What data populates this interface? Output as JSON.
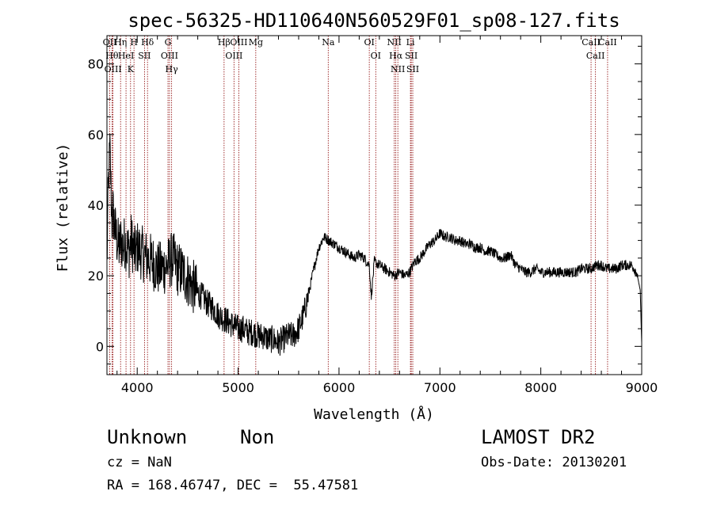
{
  "chart_data": {
    "type": "line",
    "title": "spec-56325-HD110640N560529F01_sp08-127.fits",
    "xlabel": "Wavelength (Å)",
    "ylabel": "Flux (relative)",
    "xlim": [
      3700,
      9000
    ],
    "ylim": [
      -8,
      88
    ],
    "xticks": [
      "4000",
      "5000",
      "6000",
      "7000",
      "8000",
      "9000"
    ],
    "yticks": [
      "0",
      "20",
      "40",
      "60",
      "80"
    ],
    "xtick_values": [
      4000,
      5000,
      6000,
      7000,
      8000,
      9000
    ],
    "ytick_values": [
      0,
      20,
      40,
      60,
      80
    ],
    "grid": false,
    "series": [
      {
        "color": "#000000",
        "x": [
          3700,
          3710,
          3720,
          3730,
          3740,
          3750,
          3760,
          3780,
          3800,
          3820,
          3840,
          3860,
          3880,
          3900,
          3920,
          3940,
          3960,
          3980,
          4000,
          4030,
          4060,
          4100,
          4150,
          4200,
          4250,
          4300,
          4350,
          4400,
          4450,
          4500,
          4550,
          4600,
          4650,
          4700,
          4750,
          4800,
          4850,
          4900,
          4950,
          5000,
          5050,
          5100,
          5150,
          5200,
          5250,
          5300,
          5350,
          5400,
          5450,
          5500,
          5550,
          5600,
          5650,
          5700,
          5750,
          5800,
          5850,
          5900,
          5950,
          6000,
          6050,
          6100,
          6150,
          6200,
          6250,
          6300,
          6320,
          6350,
          6400,
          6450,
          6500,
          6550,
          6600,
          6650,
          6700,
          6750,
          6800,
          6850,
          6900,
          6950,
          7000,
          7050,
          7100,
          7150,
          7200,
          7250,
          7300,
          7350,
          7400,
          7450,
          7500,
          7550,
          7600,
          7650,
          7700,
          7750,
          7800,
          7850,
          7900,
          7950,
          8000,
          8050,
          8100,
          8150,
          8200,
          8250,
          8300,
          8350,
          8400,
          8450,
          8500,
          8550,
          8600,
          8650,
          8700,
          8750,
          8800,
          8850,
          8900,
          8950,
          8985,
          9000
        ],
        "y": [
          22,
          40,
          50,
          55,
          45,
          35,
          38,
          33,
          30,
          28,
          30,
          28,
          30,
          28,
          27,
          30,
          28,
          26,
          28,
          27,
          26,
          25,
          24,
          22,
          22,
          23,
          25,
          22,
          21,
          19,
          17,
          15,
          14,
          12,
          11,
          9,
          8,
          7,
          6,
          5,
          5,
          4,
          4,
          3,
          3,
          2,
          2,
          1,
          2,
          3,
          3,
          5,
          9,
          15,
          22,
          28,
          31,
          30,
          29,
          28,
          27,
          26,
          25,
          26,
          25,
          23,
          14,
          24,
          23,
          22,
          21,
          20,
          21,
          20,
          21,
          24,
          25,
          27,
          29,
          30,
          32,
          31,
          31,
          30,
          30,
          29,
          29,
          28,
          28,
          27,
          27,
          26,
          25,
          25,
          26,
          23,
          22,
          21,
          21,
          22,
          21,
          21,
          21,
          21,
          21,
          21,
          21,
          21,
          22,
          22,
          22,
          23,
          23,
          22,
          22,
          22,
          23,
          23,
          23,
          21,
          16,
          1
        ]
      }
    ],
    "lines": [
      {
        "name": "OII",
        "x": 3727
      },
      {
        "name": "Hθ",
        "x": 3750
      },
      {
        "name": "OIII",
        "x": 3760
      },
      {
        "name": "Hη",
        "x": 3835
      },
      {
        "name": "HeI",
        "x": 3889
      },
      {
        "name": "K",
        "x": 3934
      },
      {
        "name": "H",
        "x": 3968
      },
      {
        "name": "SII",
        "x": 4072
      },
      {
        "name": "Hδ",
        "x": 4102
      },
      {
        "name": "G",
        "x": 4305
      },
      {
        "name": "OIII",
        "x": 4320
      },
      {
        "name": "Hγ",
        "x": 4341
      },
      {
        "name": "Hβ",
        "x": 4861
      },
      {
        "name": "OIII",
        "x": 4959
      },
      {
        "name": "OIII",
        "x": 5007
      },
      {
        "name": "Mg",
        "x": 5175
      },
      {
        "name": "Na",
        "x": 5893
      },
      {
        "name": "OI",
        "x": 6300
      },
      {
        "name": "OI",
        "x": 6364
      },
      {
        "name": "NII",
        "x": 6548
      },
      {
        "name": "Hα",
        "x": 6563
      },
      {
        "name": "NII",
        "x": 6583
      },
      {
        "name": "Li",
        "x": 6708
      },
      {
        "name": "SII",
        "x": 6716
      },
      {
        "name": "SII",
        "x": 6731
      },
      {
        "name": "CaII",
        "x": 8498
      },
      {
        "name": "CaII",
        "x": 8542
      },
      {
        "name": "CaII",
        "x": 8662
      }
    ],
    "line_color": "#8b0000"
  },
  "info": {
    "object_class": "Unknown",
    "subclass": "Non",
    "survey": "LAMOST DR2",
    "redshift": "cz = NaN",
    "obs_date": "Obs-Date: 20130201",
    "coords": "RA = 168.46747, DEC =  55.47581"
  }
}
